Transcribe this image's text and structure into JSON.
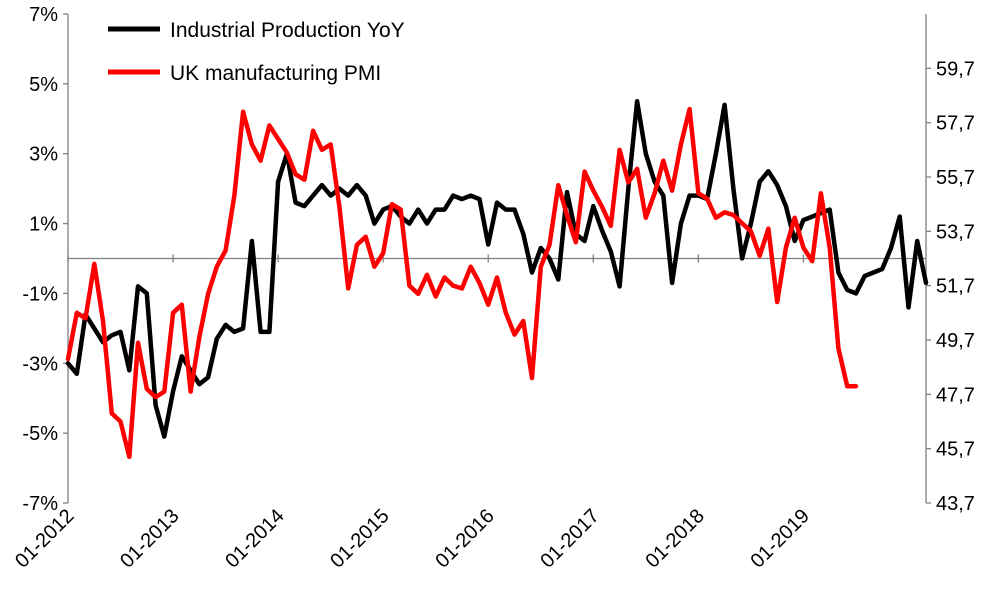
{
  "chart_data": {
    "type": "line",
    "title": "",
    "xlabel": "",
    "ylabel": "",
    "x_start": "2012-01",
    "x_step": "month",
    "x_ticks": [
      "01-2012",
      "01-2013",
      "01-2014",
      "01-2015",
      "01-2016",
      "01-2017",
      "01-2018",
      "01-2019"
    ],
    "y_left": {
      "range": [
        -7,
        7
      ],
      "tick_values": [
        -7,
        -5,
        -3,
        -1,
        1,
        3,
        5,
        7
      ],
      "tick_labels": [
        "-7%",
        "-5%",
        "-3%",
        "-1%",
        "1%",
        "3%",
        "5%",
        "7%"
      ],
      "reference_line": 0
    },
    "y_right": {
      "range": [
        43.7,
        61.7
      ],
      "tick_values": [
        43.7,
        45.7,
        47.7,
        49.7,
        51.7,
        53.7,
        55.7,
        57.7,
        59.7
      ],
      "tick_labels": [
        "43,7",
        "45,7",
        "47,7",
        "49,7",
        "51,7",
        "53,7",
        "55,7",
        "57,7",
        "59,7"
      ]
    },
    "legend": {
      "position": "top-left"
    },
    "series": [
      {
        "name": "Industrial Production YoY",
        "axis": "left",
        "color": "#000000",
        "values": [
          -3.0,
          -3.3,
          -1.6,
          -2.0,
          -2.4,
          -2.2,
          -2.1,
          -3.2,
          -0.8,
          -1.0,
          -4.2,
          -5.1,
          -3.8,
          -2.8,
          -3.2,
          -3.6,
          -3.4,
          -2.3,
          -1.9,
          -2.1,
          -2.0,
          0.5,
          -2.1,
          -2.1,
          2.2,
          3.0,
          1.6,
          1.5,
          1.8,
          2.1,
          1.8,
          2.0,
          1.8,
          2.1,
          1.8,
          1.0,
          1.4,
          1.5,
          1.2,
          1.0,
          1.4,
          1.0,
          1.4,
          1.4,
          1.8,
          1.7,
          1.8,
          1.7,
          0.4,
          1.6,
          1.4,
          1.4,
          0.7,
          -0.4,
          0.3,
          0.0,
          -0.6,
          1.9,
          0.7,
          0.5,
          1.5,
          0.8,
          0.2,
          -0.8,
          2.0,
          4.5,
          3.0,
          2.2,
          1.8,
          -0.7,
          1.0,
          1.8,
          1.8,
          1.7,
          3.0,
          4.4,
          2.0,
          0.0,
          1.0,
          2.2,
          2.5,
          2.1,
          1.5,
          0.5,
          1.1,
          1.2,
          1.3,
          1.4,
          -0.4,
          -0.9,
          -1.0,
          -0.5,
          -0.4,
          -0.3,
          0.3,
          1.2,
          -1.4,
          0.5,
          -0.7
        ]
      },
      {
        "name": "UK manufacturing PMI",
        "axis": "right",
        "color": "#ff0000",
        "values": [
          49.0,
          50.7,
          50.5,
          52.5,
          50.4,
          47.0,
          46.7,
          45.4,
          49.6,
          47.9,
          47.6,
          47.8,
          50.7,
          51.0,
          47.8,
          49.8,
          51.4,
          52.4,
          53.0,
          55.0,
          58.1,
          56.9,
          56.3,
          57.6,
          57.1,
          56.6,
          55.8,
          55.6,
          57.4,
          56.7,
          56.9,
          54.6,
          51.6,
          53.2,
          53.5,
          52.4,
          52.9,
          54.7,
          54.5,
          51.7,
          51.4,
          52.1,
          51.3,
          52.0,
          51.7,
          51.6,
          52.4,
          51.8,
          51.0,
          52.0,
          50.7,
          49.9,
          50.4,
          48.3,
          52.4,
          53.2,
          55.4,
          54.3,
          53.3,
          55.9,
          55.2,
          54.6,
          53.9,
          56.7,
          55.5,
          56.0,
          54.2,
          55.1,
          56.3,
          55.2,
          56.9,
          58.2,
          55.1,
          54.9,
          54.2,
          54.4,
          54.3,
          54.0,
          53.7,
          52.8,
          53.8,
          51.1,
          53.1,
          54.2,
          53.1,
          52.6,
          55.1,
          53.1,
          49.4,
          48.0,
          48.0
        ]
      }
    ]
  }
}
